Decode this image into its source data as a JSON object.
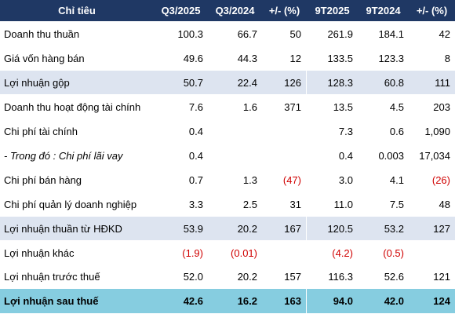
{
  "table": {
    "headers": [
      "Chỉ tiêu",
      "Q3/2025",
      "Q3/2024",
      "+/- (%)",
      "9T2025",
      "9T2024",
      "+/- (%)"
    ],
    "rows": [
      {
        "label": "Doanh thu thuần",
        "cells": [
          "100.3",
          "66.7",
          "50",
          "261.9",
          "184.1",
          "42"
        ]
      },
      {
        "label": "Giá vốn hàng bán",
        "cells": [
          "49.6",
          "44.3",
          "12",
          "133.5",
          "123.3",
          "8"
        ]
      },
      {
        "label": "Lợi nhuận gộp",
        "cells": [
          "50.7",
          "22.4",
          "126",
          "128.3",
          "60.8",
          "111"
        ]
      },
      {
        "label": "Doanh thu hoạt động tài chính",
        "cells": [
          "7.6",
          "1.6",
          "371",
          "13.5",
          "4.5",
          "203"
        ]
      },
      {
        "label": "Chi phí tài chính",
        "cells": [
          "0.4",
          "",
          "",
          "7.3",
          "0.6",
          "1,090"
        ]
      },
      {
        "label": "- Trong đó : Chi phí lãi vay",
        "cells": [
          "0.4",
          "",
          "",
          "0.4",
          "0.003",
          "17,034"
        ]
      },
      {
        "label": "Chi phí bán hàng",
        "cells": [
          "0.7",
          "1.3",
          "(47)",
          "3.0",
          "4.1",
          "(26)"
        ]
      },
      {
        "label": "Chi phí quản lý doanh nghiệp",
        "cells": [
          "3.3",
          "2.5",
          "31",
          "11.0",
          "7.5",
          "48"
        ]
      },
      {
        "label": "Lợi nhuận thuần từ HĐKD",
        "cells": [
          "53.9",
          "20.2",
          "167",
          "120.5",
          "53.2",
          "127"
        ]
      },
      {
        "label": "Lợi nhuận khác",
        "cells": [
          "(1.9)",
          "(0.01)",
          "",
          "(4.2)",
          "(0.5)",
          ""
        ]
      },
      {
        "label": "Lợi nhuận trước thuế",
        "cells": [
          "52.0",
          "20.2",
          "157",
          "116.3",
          "52.6",
          "121"
        ]
      },
      {
        "label": "Lợi nhuận sau thuế",
        "cells": [
          "42.6",
          "16.2",
          "163",
          "94.0",
          "42.0",
          "124"
        ]
      }
    ]
  },
  "colors": {
    "header_bg": "#1f3864",
    "header_text": "#ffffff",
    "shaded_row_bg": "#dde4f0",
    "total_row_bg": "#86cde0",
    "negative_text": "#d00000"
  }
}
